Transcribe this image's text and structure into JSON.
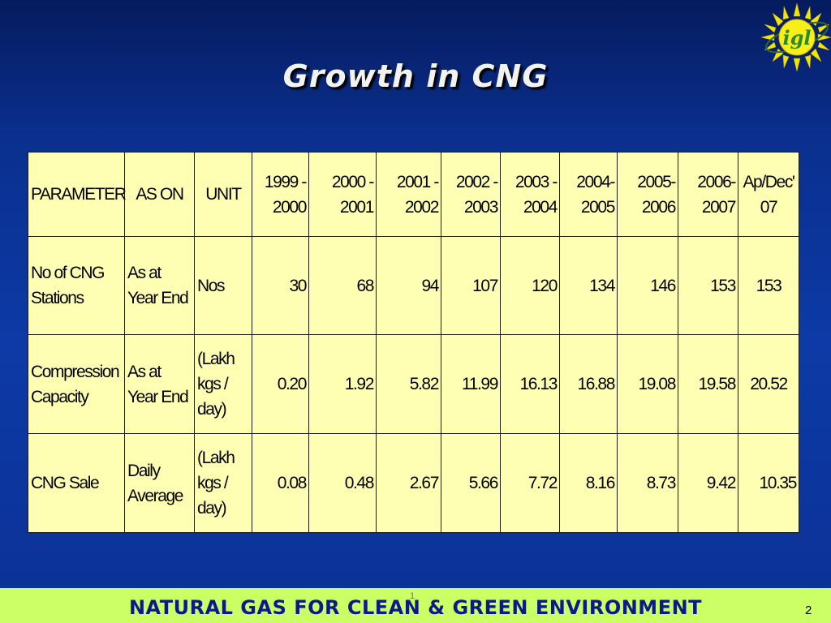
{
  "slide": {
    "title": "Growth in CNG",
    "logo_text": "igl",
    "footer": "NATURAL GAS FOR CLEAN & GREEN ENVIRONMENT",
    "page_number": "2",
    "footer_mark": "1"
  },
  "table": {
    "headers": [
      "PARAMETER",
      "AS ON",
      "UNIT",
      "1999 - 2000",
      "2000 - 2001",
      "2001 - 2002",
      "2002 - 2003",
      "2003 - 2004",
      "2004- 2005",
      "2005- 2006",
      "2006- 2007",
      "Ap/Dec' 07"
    ],
    "rows": [
      {
        "parameter": "No of CNG Stations",
        "as_on": "As at Year End",
        "unit": "Nos",
        "values": [
          "30",
          "68",
          "94",
          "107",
          "120",
          "134",
          "146",
          "153",
          "153"
        ]
      },
      {
        "parameter": "Compression Capacity",
        "as_on": "As at Year End",
        "unit": "(Lakh kgs / day)",
        "values": [
          "0.20",
          "1.92",
          "5.82",
          "11.99",
          "16.13",
          "16.88",
          "19.08",
          "19.58",
          "20.52"
        ]
      },
      {
        "parameter": "CNG Sale",
        "as_on": "Daily Average",
        "unit": "(Lakh kgs / day)",
        "values": [
          "0.08",
          "0.48",
          "2.67",
          "5.66",
          "7.72",
          "8.16",
          "8.73",
          "9.42",
          "10.35"
        ]
      }
    ]
  },
  "colors": {
    "background": "#0b3196",
    "table_fill": "#ffffb3",
    "footer_band": "#ccff66",
    "footer_text": "#0a1a8c",
    "logo_sun": "#f2e600",
    "logo_text": "#2a8a2a"
  }
}
